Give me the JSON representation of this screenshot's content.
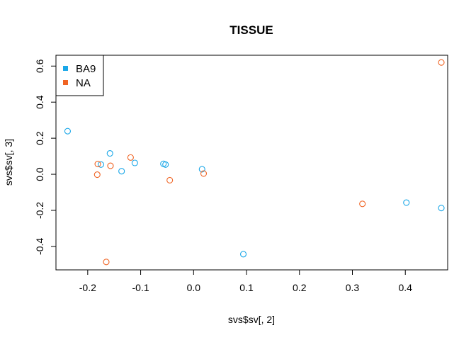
{
  "chart_data": {
    "type": "scatter",
    "title": "TISSUE",
    "xlabel": "svs$sv[, 2]",
    "ylabel": "svs$sv[, 3]",
    "xlim": [
      -0.26,
      0.48
    ],
    "ylim": [
      -0.53,
      0.66
    ],
    "xticks": [
      -0.2,
      -0.1,
      0.0,
      0.1,
      0.2,
      0.3,
      0.4
    ],
    "xtick_labels": [
      "-0.2",
      "-0.1",
      "0.0",
      "0.1",
      "0.2",
      "0.3",
      "0.4"
    ],
    "yticks": [
      -0.4,
      -0.2,
      0.0,
      0.2,
      0.4,
      0.6
    ],
    "ytick_labels": [
      "-0.4",
      "-0.2",
      "0.0",
      "0.2",
      "0.4",
      "0.6"
    ],
    "grid": false,
    "legend_position": "top-left",
    "series": [
      {
        "name": "BA9",
        "color": "#1aa7e8",
        "points": [
          {
            "x": -0.238,
            "y": 0.239
          },
          {
            "x": -0.175,
            "y": 0.054
          },
          {
            "x": -0.158,
            "y": 0.116
          },
          {
            "x": -0.136,
            "y": 0.017
          },
          {
            "x": -0.111,
            "y": 0.063
          },
          {
            "x": -0.057,
            "y": 0.058
          },
          {
            "x": -0.053,
            "y": 0.054
          },
          {
            "x": 0.016,
            "y": 0.028
          },
          {
            "x": 0.094,
            "y": -0.443
          },
          {
            "x": 0.402,
            "y": -0.157
          },
          {
            "x": 0.468,
            "y": -0.187
          }
        ]
      },
      {
        "name": "NA",
        "color": "#f06424",
        "points": [
          {
            "x": -0.181,
            "y": 0.057
          },
          {
            "x": -0.182,
            "y": -0.002
          },
          {
            "x": -0.165,
            "y": -0.486
          },
          {
            "x": -0.157,
            "y": 0.047
          },
          {
            "x": -0.119,
            "y": 0.093
          },
          {
            "x": -0.045,
            "y": -0.033
          },
          {
            "x": 0.019,
            "y": 0.004
          },
          {
            "x": 0.319,
            "y": -0.164
          },
          {
            "x": 0.468,
            "y": 0.62
          }
        ]
      }
    ]
  }
}
